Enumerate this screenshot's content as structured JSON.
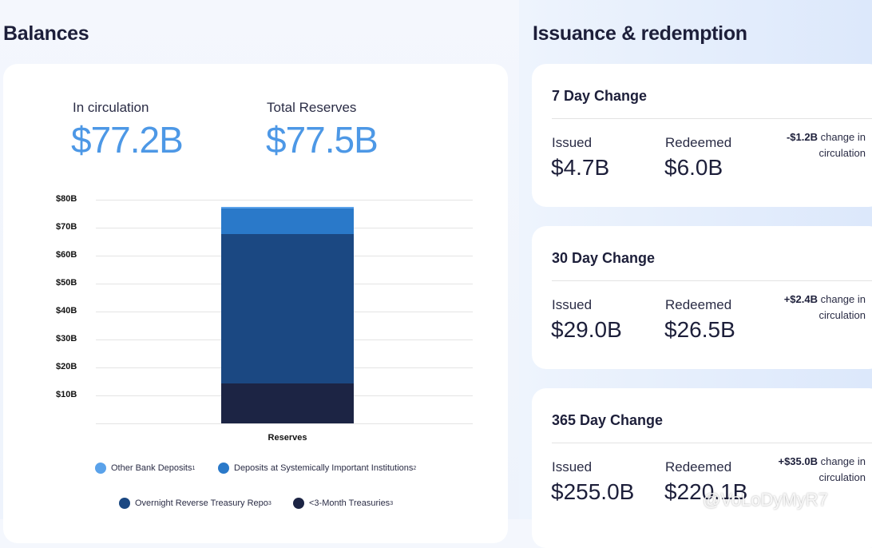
{
  "balances": {
    "title": "Balances",
    "in_circulation": {
      "label": "In circulation",
      "value": "$77.2B"
    },
    "total_reserves": {
      "label": "Total Reserves",
      "value": "$77.5B"
    }
  },
  "chart_data": {
    "type": "bar",
    "stacked": true,
    "categories": [
      "Reserves"
    ],
    "series": [
      {
        "name": "<3-Month Treasuries",
        "values": [
          14.4
        ],
        "color": "#1c2444"
      },
      {
        "name": "Overnight Reverse Treasury Repo",
        "values": [
          53.2
        ],
        "color": "#1b4882"
      },
      {
        "name": "Deposits at Systemically Important Institutions",
        "values": [
          9.2
        ],
        "color": "#2a79c9"
      },
      {
        "name": "Other Bank Deposits",
        "values": [
          0.7
        ],
        "color": "#5aa2ea"
      }
    ],
    "yticks": [
      "$10B",
      "$20B",
      "$30B",
      "$40B",
      "$50B",
      "$60B",
      "$70B",
      "$80B"
    ],
    "ylim": [
      0,
      80
    ],
    "grid": true,
    "legend": [
      {
        "label": "Other Bank Deposits",
        "sup": "1",
        "color": "#5aa2ea"
      },
      {
        "label": "Deposits at Systemically Important Institutions",
        "sup": "2",
        "color": "#2a79c9"
      },
      {
        "label": "Overnight Reverse Treasury Repo",
        "sup": "3",
        "color": "#1b4882"
      },
      {
        "label": "<3-Month Treasuries",
        "sup": "3",
        "color": "#1c2444"
      }
    ]
  },
  "issuance": {
    "title": "Issuance & redemption",
    "cards": [
      {
        "title": "7 Day Change",
        "issued_label": "Issued",
        "issued": "$4.7B",
        "redeemed_label": "Redeemed",
        "redeemed": "$6.0B",
        "change": "-$1.2B",
        "change_text": " change in circulation"
      },
      {
        "title": "30 Day Change",
        "issued_label": "Issued",
        "issued": "$29.0B",
        "redeemed_label": "Redeemed",
        "redeemed": "$26.5B",
        "change": "+$2.4B",
        "change_text": " change in circulation"
      },
      {
        "title": "365 Day Change",
        "issued_label": "Issued",
        "issued": "$255.0B",
        "redeemed_label": "Redeemed",
        "redeemed": "$220.1B",
        "change": "+$35.0B",
        "change_text": " change in circulation"
      }
    ]
  },
  "watermark": "@VoLoDyMyR7"
}
